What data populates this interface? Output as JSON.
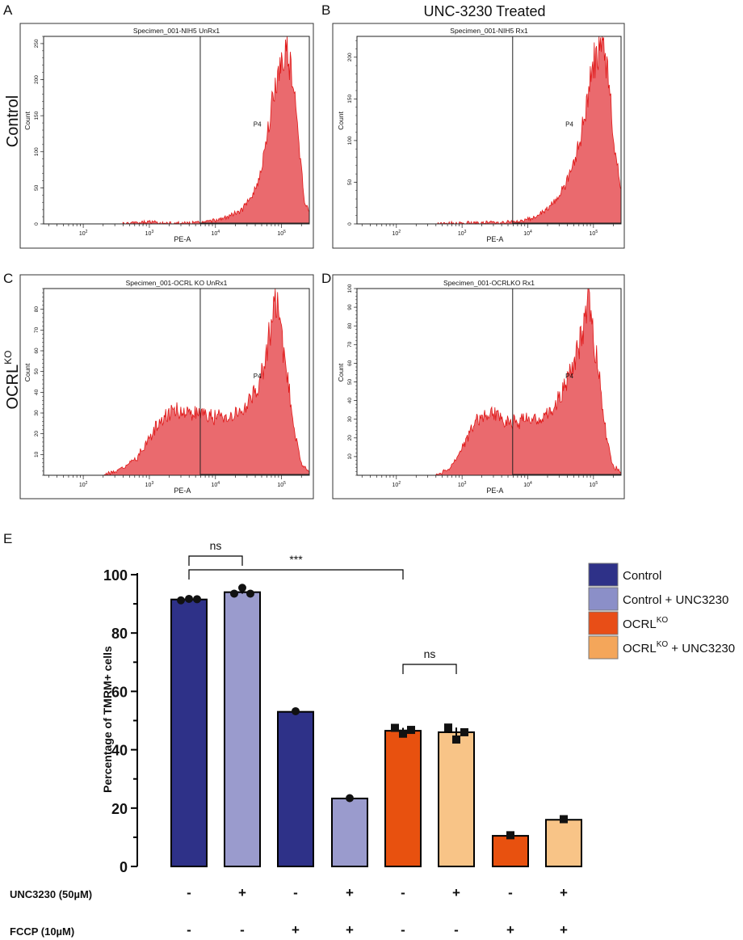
{
  "header": {
    "treated_title": "UNC-3230 Treated",
    "row_labels": [
      "Control",
      "OCRL",
      "KO"
    ]
  },
  "chart_data": [
    {
      "type": "area",
      "panel": "A",
      "title": "Specimen_001-NIH5 UnRx1",
      "xlabel": "PE-A",
      "ylabel": "Count",
      "gate": "P4",
      "xscale": "log",
      "xlim_log10": [
        1.4,
        5.42
      ],
      "gate_log10": 3.77,
      "ylim": [
        0,
        260
      ],
      "yticks": [
        0,
        50,
        100,
        150,
        200,
        250
      ],
      "xticks": [
        "10^2",
        "10^3",
        "10^4",
        "10^5"
      ],
      "profile": [
        [
          2.6,
          0
        ],
        [
          2.8,
          1
        ],
        [
          3.0,
          3
        ],
        [
          3.2,
          1
        ],
        [
          3.6,
          1
        ],
        [
          3.8,
          2
        ],
        [
          4.0,
          5
        ],
        [
          4.2,
          10
        ],
        [
          4.4,
          20
        ],
        [
          4.6,
          45
        ],
        [
          4.7,
          80
        ],
        [
          4.8,
          130
        ],
        [
          4.9,
          190
        ],
        [
          5.0,
          225
        ],
        [
          5.05,
          250
        ],
        [
          5.1,
          240
        ],
        [
          5.2,
          170
        ],
        [
          5.3,
          80
        ],
        [
          5.35,
          30
        ],
        [
          5.42,
          20
        ]
      ]
    },
    {
      "type": "area",
      "panel": "B",
      "title": "Specimen_001-NIH5 Rx1",
      "xlabel": "PE-A",
      "ylabel": "Count",
      "gate": "P4",
      "xscale": "log",
      "xlim_log10": [
        1.4,
        5.42
      ],
      "gate_log10": 3.77,
      "ylim": [
        0,
        225
      ],
      "yticks": [
        0,
        50,
        100,
        150,
        200
      ],
      "xticks": [
        "10^2",
        "10^3",
        "10^4",
        "10^5"
      ],
      "profile": [
        [
          2.6,
          0
        ],
        [
          3.0,
          1
        ],
        [
          3.6,
          2
        ],
        [
          3.9,
          3
        ],
        [
          4.1,
          8
        ],
        [
          4.3,
          18
        ],
        [
          4.5,
          35
        ],
        [
          4.7,
          70
        ],
        [
          4.85,
          120
        ],
        [
          4.95,
          170
        ],
        [
          5.05,
          205
        ],
        [
          5.12,
          220
        ],
        [
          5.2,
          190
        ],
        [
          5.3,
          110
        ],
        [
          5.38,
          60
        ],
        [
          5.42,
          40
        ]
      ]
    },
    {
      "type": "area",
      "panel": "C",
      "title": "Specimen_001-OCRL KO UnRx1",
      "xlabel": "PE-A",
      "ylabel": "Count",
      "gate": "P4",
      "xscale": "log",
      "xlim_log10": [
        1.4,
        5.42
      ],
      "gate_log10": 3.77,
      "ylim": [
        0,
        90
      ],
      "yticks": [
        10,
        20,
        30,
        40,
        50,
        60,
        70,
        80
      ],
      "xticks": [
        "10^2",
        "10^3",
        "10^4",
        "10^5"
      ],
      "profile": [
        [
          2.3,
          0
        ],
        [
          2.6,
          3
        ],
        [
          2.8,
          8
        ],
        [
          3.0,
          18
        ],
        [
          3.2,
          28
        ],
        [
          3.4,
          32
        ],
        [
          3.6,
          30
        ],
        [
          3.8,
          30
        ],
        [
          4.0,
          28
        ],
        [
          4.2,
          28
        ],
        [
          4.4,
          30
        ],
        [
          4.6,
          40
        ],
        [
          4.75,
          55
        ],
        [
          4.85,
          75
        ],
        [
          4.92,
          86
        ],
        [
          5.0,
          65
        ],
        [
          5.1,
          45
        ],
        [
          5.2,
          20
        ],
        [
          5.3,
          5
        ],
        [
          5.42,
          2
        ]
      ]
    },
    {
      "type": "area",
      "panel": "D",
      "title": "Specimen_001-OCRLKO Rx1",
      "xlabel": "PE-A",
      "ylabel": "Count",
      "gate": "P4",
      "xscale": "log",
      "xlim_log10": [
        1.4,
        5.42
      ],
      "gate_log10": 3.77,
      "ylim": [
        0,
        100
      ],
      "yticks": [
        10,
        20,
        30,
        40,
        50,
        60,
        70,
        80,
        90,
        100
      ],
      "xticks": [
        "10^2",
        "10^3",
        "10^4",
        "10^5"
      ],
      "profile": [
        [
          2.6,
          0
        ],
        [
          2.8,
          3
        ],
        [
          3.0,
          15
        ],
        [
          3.2,
          28
        ],
        [
          3.4,
          34
        ],
        [
          3.6,
          30
        ],
        [
          3.8,
          28
        ],
        [
          4.0,
          30
        ],
        [
          4.2,
          30
        ],
        [
          4.4,
          35
        ],
        [
          4.6,
          50
        ],
        [
          4.75,
          65
        ],
        [
          4.85,
          80
        ],
        [
          4.93,
          96
        ],
        [
          5.0,
          75
        ],
        [
          5.1,
          50
        ],
        [
          5.2,
          20
        ],
        [
          5.3,
          5
        ],
        [
          5.42,
          2
        ]
      ]
    },
    {
      "type": "bar",
      "panel": "E",
      "ylabel": "Percentage of TMRM+ cells",
      "ylim": [
        0,
        100
      ],
      "yticks": [
        0,
        20,
        40,
        60,
        80,
        100
      ],
      "groups": [
        "Control",
        "Control + UNC3230",
        "OCRL^KO",
        "OCRL^KO + UNC3230"
      ],
      "colors": {
        "Control": "#2e3188",
        "Control + UNC3230": "#9a9bcd",
        "OCRL^KO": "#e8510f",
        "OCRL^KO + UNC3230": "#f8c487"
      },
      "legend": [
        {
          "label": "Control",
          "sup": "",
          "suffix": "",
          "color": "#2e3188"
        },
        {
          "label": "Control + UNC3230",
          "sup": "",
          "suffix": "",
          "color": "#8b8fc8"
        },
        {
          "label": "OCRL",
          "sup": "KO",
          "suffix": "",
          "color": "#e84e17"
        },
        {
          "label": "OCRL",
          "sup": "KO",
          "suffix": " + UNC3230",
          "color": "#f4a65a"
        }
      ],
      "bars": [
        {
          "group": "Control",
          "value": 91.5,
          "points": [
            91.2,
            91.7,
            91.6
          ],
          "marker": "circle",
          "unc": "-",
          "fccp": "-"
        },
        {
          "group": "Control + UNC3230",
          "value": 94,
          "points": [
            93.5,
            95.5,
            93.5
          ],
          "marker": "circle",
          "unc": "+",
          "fccp": "-"
        },
        {
          "group": "Control",
          "value": 53,
          "points": [
            53.2
          ],
          "marker": "circle",
          "unc": "-",
          "fccp": "+"
        },
        {
          "group": "Control + UNC3230",
          "value": 23.3,
          "points": [
            23.4
          ],
          "marker": "circle",
          "unc": "+",
          "fccp": "+"
        },
        {
          "group": "OCRL^KO",
          "value": 46.5,
          "points": [
            47.5,
            45.5,
            46.8
          ],
          "marker": "square",
          "unc": "-",
          "fccp": "-"
        },
        {
          "group": "OCRL^KO + UNC3230",
          "value": 46,
          "points": [
            47.6,
            43.5,
            46
          ],
          "marker": "square",
          "unc": "+",
          "fccp": "-"
        },
        {
          "group": "OCRL^KO",
          "value": 10.5,
          "points": [
            10.7
          ],
          "marker": "square",
          "unc": "-",
          "fccp": "+"
        },
        {
          "group": "OCRL^KO + UNC3230",
          "value": 16,
          "points": [
            16.2
          ],
          "marker": "square",
          "unc": "+",
          "fccp": "+"
        }
      ],
      "row_labels": {
        "unc": "UNC3230 (50µM)",
        "fccp": "FCCP (10µM)"
      },
      "significance": [
        {
          "from": 0,
          "to": 1,
          "label": "ns"
        },
        {
          "from": 0,
          "to": 4,
          "label": "***"
        },
        {
          "from": 4,
          "to": 5,
          "label": "ns"
        }
      ]
    }
  ],
  "panel_letters": [
    "A",
    "B",
    "C",
    "D",
    "E"
  ]
}
